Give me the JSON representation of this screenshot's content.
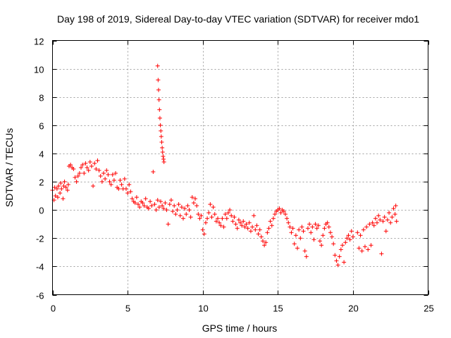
{
  "chart_data": {
    "type": "scatter",
    "title": "Day 198 of 2019, Sidereal Day-to-day VTEC variation (SDTVAR) for receiver mdo1",
    "xlabel": "GPS time / hours",
    "ylabel": "SDTVAR / TECUs",
    "xlim": [
      0,
      25
    ],
    "ylim": [
      -6,
      12
    ],
    "xticks": [
      "0",
      "5",
      "10",
      "15",
      "20",
      "25"
    ],
    "yticks": [
      "-6",
      "-4",
      "-2",
      "0",
      "2",
      "4",
      "6",
      "8",
      "10",
      "12"
    ],
    "grid": true,
    "marker": "plus",
    "series_color": "#ff0000",
    "series": [
      {
        "name": "SDTVAR",
        "points": [
          [
            0.0,
            1.4
          ],
          [
            0.1,
            0.7
          ],
          [
            0.15,
            1.6
          ],
          [
            0.2,
            1.0
          ],
          [
            0.3,
            1.5
          ],
          [
            0.35,
            0.9
          ],
          [
            0.4,
            1.7
          ],
          [
            0.5,
            1.2
          ],
          [
            0.55,
            1.9
          ],
          [
            0.6,
            1.5
          ],
          [
            0.7,
            0.8
          ],
          [
            0.75,
            1.7
          ],
          [
            0.8,
            2.0
          ],
          [
            0.9,
            1.6
          ],
          [
            1.0,
            1.4
          ],
          [
            1.05,
            1.8
          ],
          [
            1.1,
            3.1
          ],
          [
            1.2,
            3.2
          ],
          [
            1.3,
            3.0
          ],
          [
            1.4,
            2.9
          ],
          [
            1.5,
            2.3
          ],
          [
            1.6,
            2.0
          ],
          [
            1.7,
            2.4
          ],
          [
            1.8,
            2.6
          ],
          [
            1.9,
            3.0
          ],
          [
            2.0,
            3.2
          ],
          [
            2.1,
            2.6
          ],
          [
            2.2,
            3.3
          ],
          [
            2.3,
            3.0
          ],
          [
            2.4,
            2.8
          ],
          [
            2.5,
            3.4
          ],
          [
            2.6,
            3.1
          ],
          [
            2.7,
            1.7
          ],
          [
            2.8,
            3.3
          ],
          [
            2.9,
            2.9
          ],
          [
            3.0,
            3.5
          ],
          [
            3.1,
            2.8
          ],
          [
            3.2,
            2.4
          ],
          [
            3.3,
            2.0
          ],
          [
            3.4,
            2.6
          ],
          [
            3.5,
            2.2
          ],
          [
            3.6,
            2.8
          ],
          [
            3.7,
            2.5
          ],
          [
            3.8,
            2.0
          ],
          [
            3.9,
            1.8
          ],
          [
            4.0,
            2.5
          ],
          [
            4.1,
            2.1
          ],
          [
            4.2,
            2.6
          ],
          [
            4.3,
            1.6
          ],
          [
            4.4,
            1.5
          ],
          [
            4.5,
            2.1
          ],
          [
            4.6,
            1.8
          ],
          [
            4.7,
            1.5
          ],
          [
            4.8,
            2.2
          ],
          [
            4.9,
            1.5
          ],
          [
            5.0,
            1.2
          ],
          [
            5.1,
            1.8
          ],
          [
            5.2,
            1.3
          ],
          [
            5.3,
            0.8
          ],
          [
            5.4,
            0.6
          ],
          [
            5.5,
            0.5
          ],
          [
            5.6,
            0.9
          ],
          [
            5.7,
            0.4
          ],
          [
            5.8,
            0.2
          ],
          [
            5.9,
            0.6
          ],
          [
            6.0,
            0.5
          ],
          [
            6.1,
            0.3
          ],
          [
            6.2,
            0.8
          ],
          [
            6.3,
            0.2
          ],
          [
            6.4,
            0.1
          ],
          [
            6.5,
            0.6
          ],
          [
            6.6,
            0.3
          ],
          [
            6.7,
            2.7
          ],
          [
            6.8,
            0.4
          ],
          [
            6.9,
            0.0
          ],
          [
            7.0,
            0.7
          ],
          [
            7.1,
            0.2
          ],
          [
            7.2,
            0.6
          ],
          [
            7.3,
            0.3
          ],
          [
            7.4,
            0.1
          ],
          [
            7.5,
            0.5
          ],
          [
            7.6,
            0.0
          ],
          [
            7.7,
            -1.0
          ],
          [
            7.8,
            0.4
          ],
          [
            7.9,
            0.7
          ],
          [
            8.0,
            -0.1
          ],
          [
            8.1,
            0.3
          ],
          [
            8.2,
            -0.3
          ],
          [
            8.3,
            0.0
          ],
          [
            8.4,
            0.4
          ],
          [
            8.5,
            -0.4
          ],
          [
            8.6,
            0.2
          ],
          [
            8.7,
            -0.6
          ],
          [
            8.8,
            0.1
          ],
          [
            8.9,
            -0.3
          ],
          [
            9.0,
            0.3
          ],
          [
            9.1,
            0.0
          ],
          [
            9.2,
            -0.5
          ],
          [
            9.3,
            0.9
          ],
          [
            9.4,
            0.5
          ],
          [
            9.5,
            0.8
          ],
          [
            9.6,
            0.3
          ],
          [
            9.7,
            -0.3
          ],
          [
            9.8,
            -0.6
          ],
          [
            9.9,
            -0.4
          ],
          [
            10.0,
            -1.4
          ],
          [
            10.1,
            -1.7
          ],
          [
            10.2,
            -0.9
          ],
          [
            10.3,
            -0.6
          ],
          [
            10.4,
            -0.2
          ],
          [
            10.5,
            0.4
          ],
          [
            10.6,
            -0.5
          ],
          [
            10.7,
            0.2
          ],
          [
            10.8,
            -0.3
          ],
          [
            10.9,
            -0.8
          ],
          [
            11.0,
            -0.6
          ],
          [
            11.1,
            -0.9
          ],
          [
            11.2,
            -1.1
          ],
          [
            11.3,
            -0.6
          ],
          [
            11.4,
            -1.2
          ],
          [
            11.5,
            -0.3
          ],
          [
            11.6,
            -0.6
          ],
          [
            11.7,
            -0.2
          ],
          [
            11.8,
            0.0
          ],
          [
            11.9,
            -0.4
          ],
          [
            12.0,
            -0.8
          ],
          [
            12.1,
            -0.5
          ],
          [
            12.2,
            -1.0
          ],
          [
            12.3,
            -1.3
          ],
          [
            12.4,
            -0.7
          ],
          [
            12.5,
            -0.9
          ],
          [
            12.6,
            -1.1
          ],
          [
            12.7,
            -0.8
          ],
          [
            12.8,
            -1.2
          ],
          [
            12.9,
            -1.0
          ],
          [
            13.0,
            -1.3
          ],
          [
            13.1,
            -0.9
          ],
          [
            13.2,
            -1.5
          ],
          [
            13.3,
            -1.2
          ],
          [
            13.4,
            -0.4
          ],
          [
            13.5,
            -1.4
          ],
          [
            13.6,
            -1.1
          ],
          [
            13.7,
            -1.7
          ],
          [
            13.8,
            -1.4
          ],
          [
            13.9,
            -1.9
          ],
          [
            14.0,
            -2.2
          ],
          [
            14.1,
            -2.5
          ],
          [
            14.2,
            -2.3
          ],
          [
            14.3,
            -1.6
          ],
          [
            14.4,
            -1.3
          ],
          [
            14.5,
            -0.8
          ],
          [
            14.6,
            -1.1
          ],
          [
            14.7,
            -0.6
          ],
          [
            14.8,
            -0.3
          ],
          [
            14.9,
            -0.1
          ],
          [
            15.0,
            0.0
          ],
          [
            15.1,
            0.1
          ],
          [
            15.2,
            -0.2
          ],
          [
            15.3,
            0.0
          ],
          [
            15.4,
            -0.1
          ],
          [
            15.5,
            -0.3
          ],
          [
            15.6,
            -0.6
          ],
          [
            15.7,
            -0.9
          ],
          [
            15.8,
            -1.2
          ],
          [
            15.9,
            -1.6
          ],
          [
            16.0,
            -1.3
          ],
          [
            16.1,
            -2.4
          ],
          [
            16.2,
            -1.8
          ],
          [
            16.3,
            -2.7
          ],
          [
            16.4,
            -1.4
          ],
          [
            16.5,
            -2.0
          ],
          [
            16.6,
            -1.2
          ],
          [
            16.7,
            -1.5
          ],
          [
            16.8,
            -2.9
          ],
          [
            16.9,
            -3.3
          ],
          [
            17.0,
            -1.3
          ],
          [
            17.1,
            -1.0
          ],
          [
            17.2,
            -1.6
          ],
          [
            17.3,
            -1.2
          ],
          [
            17.4,
            -2.1
          ],
          [
            17.5,
            -1.0
          ],
          [
            17.6,
            -1.3
          ],
          [
            17.7,
            -1.1
          ],
          [
            17.8,
            -2.2
          ],
          [
            17.9,
            -2.5
          ],
          [
            18.0,
            -1.8
          ],
          [
            18.1,
            -1.3
          ],
          [
            18.2,
            -1.0
          ],
          [
            18.3,
            -0.9
          ],
          [
            18.4,
            -1.2
          ],
          [
            18.5,
            -1.6
          ],
          [
            18.6,
            -1.9
          ],
          [
            18.7,
            -2.4
          ],
          [
            18.8,
            -3.2
          ],
          [
            18.9,
            -3.6
          ],
          [
            19.0,
            -3.9
          ],
          [
            19.1,
            -3.3
          ],
          [
            19.2,
            -2.8
          ],
          [
            19.3,
            -2.5
          ],
          [
            19.4,
            -3.7
          ],
          [
            19.5,
            -2.3
          ],
          [
            19.6,
            -2.0
          ],
          [
            19.7,
            -1.8
          ],
          [
            19.8,
            -2.1
          ],
          [
            19.9,
            -1.5
          ],
          [
            20.0,
            -1.9
          ],
          [
            20.3,
            -1.6
          ],
          [
            20.4,
            -2.7
          ],
          [
            20.5,
            -1.8
          ],
          [
            20.6,
            -2.9
          ],
          [
            20.7,
            -1.4
          ],
          [
            20.8,
            -2.6
          ],
          [
            20.9,
            -1.2
          ],
          [
            21.0,
            -2.8
          ],
          [
            21.1,
            -1.0
          ],
          [
            21.2,
            -2.5
          ],
          [
            21.3,
            -0.9
          ],
          [
            21.4,
            -1.1
          ],
          [
            21.5,
            -0.6
          ],
          [
            21.6,
            -0.9
          ],
          [
            21.7,
            -0.4
          ],
          [
            21.8,
            -0.7
          ],
          [
            21.9,
            -3.1
          ],
          [
            22.0,
            -0.8
          ],
          [
            22.1,
            -0.5
          ],
          [
            22.2,
            -1.5
          ],
          [
            22.3,
            -0.7
          ],
          [
            22.4,
            -0.2
          ],
          [
            22.5,
            -0.9
          ],
          [
            22.6,
            -0.5
          ],
          [
            22.7,
            0.1
          ],
          [
            22.8,
            -0.3
          ],
          [
            22.85,
            0.3
          ],
          [
            22.9,
            -0.8
          ],
          [
            7.0,
            10.2
          ],
          [
            7.03,
            9.2
          ],
          [
            7.06,
            8.5
          ],
          [
            7.09,
            7.8
          ],
          [
            7.12,
            7.1
          ],
          [
            7.15,
            6.5
          ],
          [
            7.18,
            6.0
          ],
          [
            7.21,
            5.6
          ],
          [
            7.24,
            5.2
          ],
          [
            7.27,
            4.8
          ],
          [
            7.3,
            4.4
          ],
          [
            7.33,
            4.1
          ],
          [
            7.36,
            3.8
          ],
          [
            7.39,
            3.6
          ],
          [
            7.42,
            3.4
          ]
        ]
      }
    ]
  }
}
